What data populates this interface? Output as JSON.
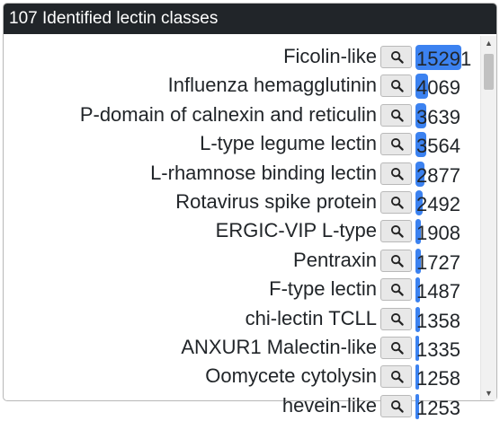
{
  "header": {
    "title": "107 Identified lectin classes"
  },
  "colors": {
    "bar": "#3c82f0",
    "header_bg": "#212529"
  },
  "icons": {
    "row_button": "search-icon",
    "scroll_up": "scroll-up-arrow-icon",
    "scroll_down": "scroll-down-arrow-icon"
  },
  "list": {
    "max_count": 15291,
    "items": [
      {
        "label": "Ficolin-like",
        "count": "15291",
        "value": 15291
      },
      {
        "label": "Influenza hemagglutinin",
        "count": "4069",
        "value": 4069
      },
      {
        "label": "P-domain of calnexin and reticulin",
        "count": "3639",
        "value": 3639
      },
      {
        "label": "L-type legume lectin",
        "count": "3564",
        "value": 3564
      },
      {
        "label": "L-rhamnose binding lectin",
        "count": "2877",
        "value": 2877
      },
      {
        "label": "Rotavirus spike protein",
        "count": "2492",
        "value": 2492
      },
      {
        "label": "ERGIC-VIP L-type",
        "count": "1908",
        "value": 1908
      },
      {
        "label": "Pentraxin",
        "count": "1727",
        "value": 1727
      },
      {
        "label": "F-type lectin",
        "count": "1487",
        "value": 1487
      },
      {
        "label": "chi-lectin TCLL",
        "count": "1358",
        "value": 1358
      },
      {
        "label": "ANXUR1 Malectin-like",
        "count": "1335",
        "value": 1335
      },
      {
        "label": "Oomycete cytolysin",
        "count": "1258",
        "value": 1258
      },
      {
        "label": "hevein-like",
        "count": "1253",
        "value": 1253
      }
    ]
  },
  "scrollbar": {
    "up_glyph": "▲",
    "down_glyph": "▼"
  }
}
